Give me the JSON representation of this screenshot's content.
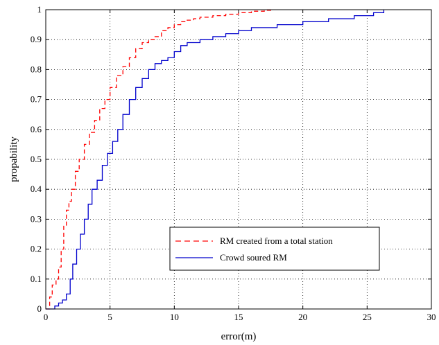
{
  "chart_data": {
    "type": "line",
    "title": "",
    "xlabel": "error(m)",
    "ylabel": "propability",
    "xlim": [
      0,
      30
    ],
    "ylim": [
      0,
      1
    ],
    "xticks": [
      0,
      5,
      10,
      15,
      20,
      25,
      30
    ],
    "yticks": [
      0,
      0.1,
      0.2,
      0.3,
      0.4,
      0.5,
      0.6,
      0.7,
      0.8,
      0.9,
      1
    ],
    "grid": true,
    "legend_position": "lower-right",
    "series": [
      {
        "name": "RM created from a total station",
        "color": "#ff0000",
        "style": "dashed",
        "x": [
          0,
          0.3,
          0.5,
          0.8,
          1.0,
          1.2,
          1.4,
          1.6,
          1.8,
          2.0,
          2.3,
          2.6,
          3.0,
          3.4,
          3.8,
          4.2,
          4.6,
          5.0,
          5.5,
          6.0,
          6.5,
          7.0,
          7.5,
          8.0,
          8.5,
          9.0,
          9.5,
          10.0,
          10.5,
          11.0,
          11.5,
          12.0,
          13.0,
          14.0,
          15.0,
          16.0,
          17.0,
          17.5
        ],
        "y": [
          0,
          0.04,
          0.08,
          0.1,
          0.14,
          0.2,
          0.28,
          0.33,
          0.36,
          0.4,
          0.46,
          0.5,
          0.55,
          0.59,
          0.63,
          0.67,
          0.7,
          0.74,
          0.78,
          0.81,
          0.84,
          0.87,
          0.89,
          0.9,
          0.91,
          0.93,
          0.94,
          0.95,
          0.96,
          0.965,
          0.97,
          0.975,
          0.98,
          0.985,
          0.99,
          0.995,
          0.998,
          1.0
        ]
      },
      {
        "name": "Crowd soured RM",
        "color": "#0000cc",
        "style": "solid",
        "x": [
          0,
          0.4,
          0.7,
          1.0,
          1.3,
          1.6,
          1.9,
          2.1,
          2.4,
          2.7,
          3.0,
          3.3,
          3.6,
          4.0,
          4.4,
          4.8,
          5.2,
          5.6,
          6.0,
          6.5,
          7.0,
          7.5,
          8.0,
          8.5,
          9.0,
          9.5,
          10.0,
          10.5,
          11.0,
          12.0,
          13.0,
          14.0,
          15.0,
          16.0,
          18.0,
          20.0,
          22.0,
          24.0,
          25.5,
          26.3
        ],
        "y": [
          0,
          0.0,
          0.01,
          0.02,
          0.03,
          0.05,
          0.1,
          0.15,
          0.2,
          0.25,
          0.3,
          0.35,
          0.4,
          0.43,
          0.48,
          0.52,
          0.56,
          0.6,
          0.65,
          0.7,
          0.74,
          0.77,
          0.8,
          0.82,
          0.83,
          0.84,
          0.86,
          0.88,
          0.89,
          0.9,
          0.91,
          0.92,
          0.93,
          0.94,
          0.95,
          0.96,
          0.97,
          0.98,
          0.99,
          1.0
        ]
      }
    ]
  }
}
